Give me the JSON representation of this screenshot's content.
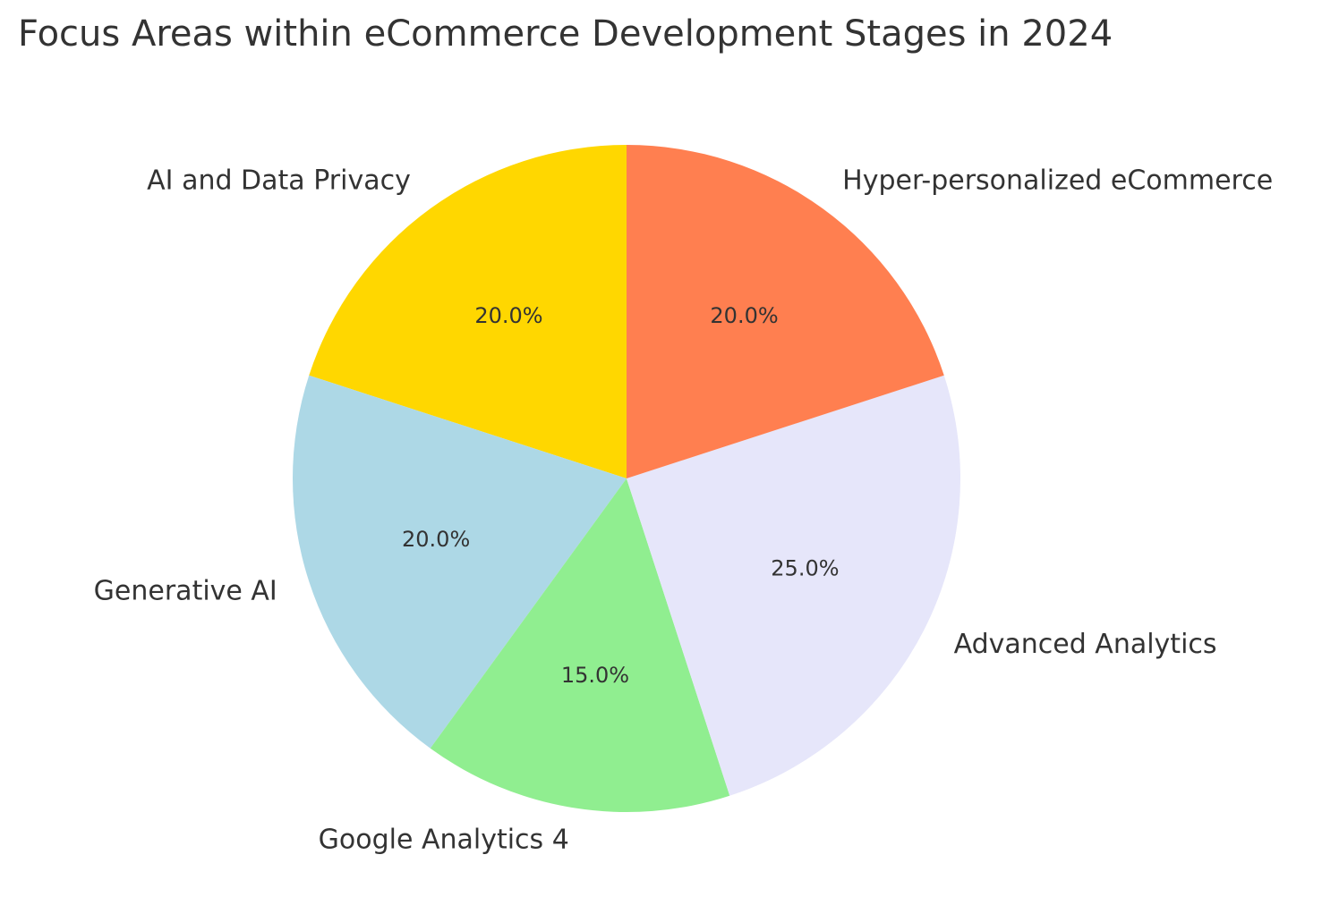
{
  "chart_data": {
    "type": "pie",
    "title": "Focus Areas within eCommerce Development Stages in 2024",
    "categories": [
      "AI and Data Privacy",
      "Generative AI",
      "Google Analytics 4",
      "Advanced Analytics",
      "Hyper-personalized eCommerce"
    ],
    "values": [
      20,
      20,
      15,
      25,
      20
    ],
    "value_labels": [
      "20.0%",
      "20.0%",
      "15.0%",
      "25.0%",
      "20.0%"
    ],
    "colors": [
      "#ffd700",
      "#add8e6",
      "#90ee90",
      "#e6e6fa",
      "#ff7f50"
    ],
    "start_angle": 90,
    "direction": "counterclockwise"
  }
}
